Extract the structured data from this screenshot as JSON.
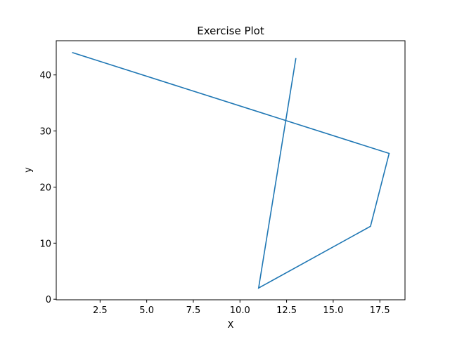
{
  "chart_data": {
    "type": "line",
    "title": "Exercise Plot",
    "xlabel": "X",
    "ylabel": "y",
    "xlim": [
      0.15,
      18.85
    ],
    "ylim": [
      -0.1,
      46.1
    ],
    "x_ticks": [
      2.5,
      5.0,
      7.5,
      10.0,
      12.5,
      15.0,
      17.5
    ],
    "x_tick_labels": [
      "2.5",
      "5.0",
      "7.5",
      "10.0",
      "12.5",
      "15.0",
      "17.5"
    ],
    "y_ticks": [
      0,
      10,
      20,
      30,
      40
    ],
    "y_tick_labels": [
      "0",
      "10",
      "20",
      "30",
      "40"
    ],
    "grid": false,
    "series": [
      {
        "color": "#1f77b4",
        "points": [
          {
            "x": 1,
            "y": 44
          },
          {
            "x": 18,
            "y": 26
          },
          {
            "x": 17,
            "y": 13
          },
          {
            "x": 11,
            "y": 2
          },
          {
            "x": 13,
            "y": 43
          }
        ]
      }
    ]
  }
}
